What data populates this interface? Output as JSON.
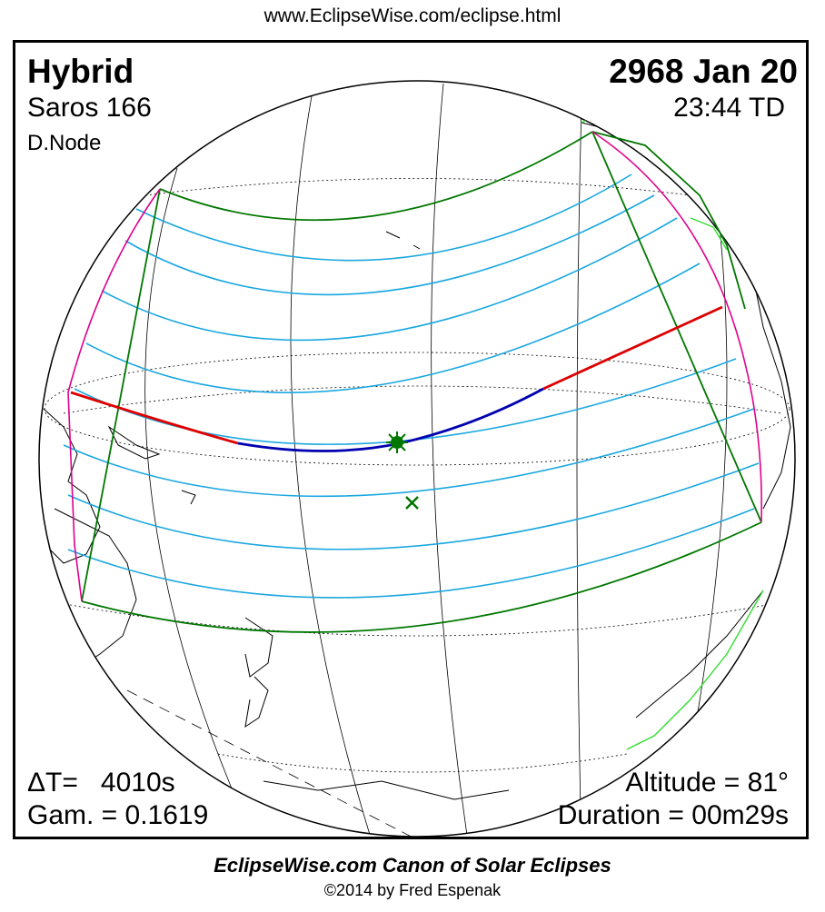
{
  "header": {
    "url": "www.EclipseWise.com/eclipse.html"
  },
  "eclipse": {
    "type": "Hybrid",
    "date": "2968 Jan 20",
    "saros": "Saros 166",
    "time": "23:44 TD",
    "node": "D.Node",
    "delta_t": "ΔT=   4010s",
    "gamma": "Gam. = 0.1619",
    "altitude": "Altitude = 81°",
    "duration": "Duration = 00m29s"
  },
  "colors": {
    "path_edges": "#007700",
    "penumbral_lines": "#1aa7e0",
    "rise_set_curve": "#e0008c",
    "central_annular": "#dd0000",
    "central_total": "#0000b0",
    "land": "#000000",
    "coast_green": "#33dd33"
  },
  "markers": {
    "greatest_eclipse": "sunburst-icon",
    "sub_solar_point": "cross-icon"
  },
  "footer": {
    "title": "EclipseWise.com Canon of Solar Eclipses",
    "copyright": "©2014 by Fred Espenak"
  }
}
